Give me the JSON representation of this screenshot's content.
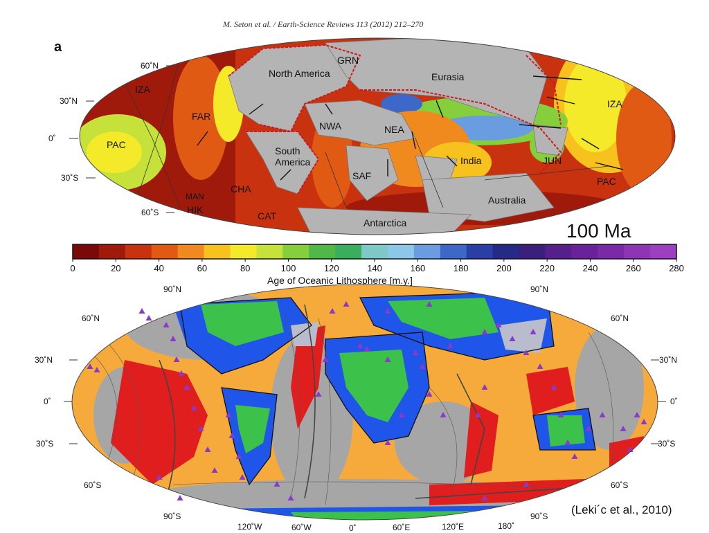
{
  "citation": "M. Seton et al. / Earth-Science Reviews 113 (2012) 212–270",
  "panel_letter": "a",
  "age_label": "100 Ma",
  "top_map": {
    "lat_labels": [
      "60˚N",
      "30˚N",
      "0˚",
      "30˚S",
      "60˚S"
    ],
    "plates": [
      "GRN",
      "North America",
      "Eurasia",
      "IZA",
      "FAR",
      "NWA",
      "NEA",
      "PAC",
      "South America",
      "India",
      "JUN",
      "SAF",
      "CHA",
      "MAN",
      "HIK",
      "CAT",
      "Antarctica",
      "Australia"
    ]
  },
  "colorbar": {
    "ticks": [
      "0",
      "20",
      "40",
      "60",
      "80",
      "100",
      "120",
      "140",
      "160",
      "180",
      "200",
      "220",
      "240",
      "260",
      "280"
    ],
    "title": "Age of Oceanic Lithosphere [m.y.]",
    "colors": [
      "#7a0a0a",
      "#a01a0c",
      "#c8320f",
      "#e05a14",
      "#f08a1e",
      "#f7c21e",
      "#f4ea2a",
      "#c6e23a",
      "#86cf3c",
      "#4fb848",
      "#3aae5c",
      "#7ec8c8",
      "#8cc7ea",
      "#6a9de0",
      "#3d68c8",
      "#2a3fa6",
      "#242a86",
      "#3a207a",
      "#55208a",
      "#6a229a",
      "#7a2aa8",
      "#8e35b4",
      "#9c3fc0"
    ]
  },
  "bottom_map": {
    "lat_left": [
      "90˚N",
      "60˚N",
      "30˚N",
      "0˚",
      "30˚S",
      "60˚S",
      "90˚S"
    ],
    "lat_right": [
      "90˚N",
      "60˚N",
      "30˚N",
      "0˚",
      "30˚S",
      "60˚S",
      "90˚S"
    ],
    "lon": [
      "120˚W",
      "60˚W",
      "0˚",
      "60˚E",
      "120˚E",
      "180˚"
    ]
  },
  "reference": "(Leki´c et al., 2010)",
  "colors": {
    "land_gray": "#b4b4b4",
    "ocean_orange": "#f6aa3c",
    "ocean_gray": "#a6a6a6",
    "red": "#e01e1e",
    "green": "#3cc24a",
    "blue": "#1f55e8",
    "volcano_purple": "#8a3ac8"
  }
}
